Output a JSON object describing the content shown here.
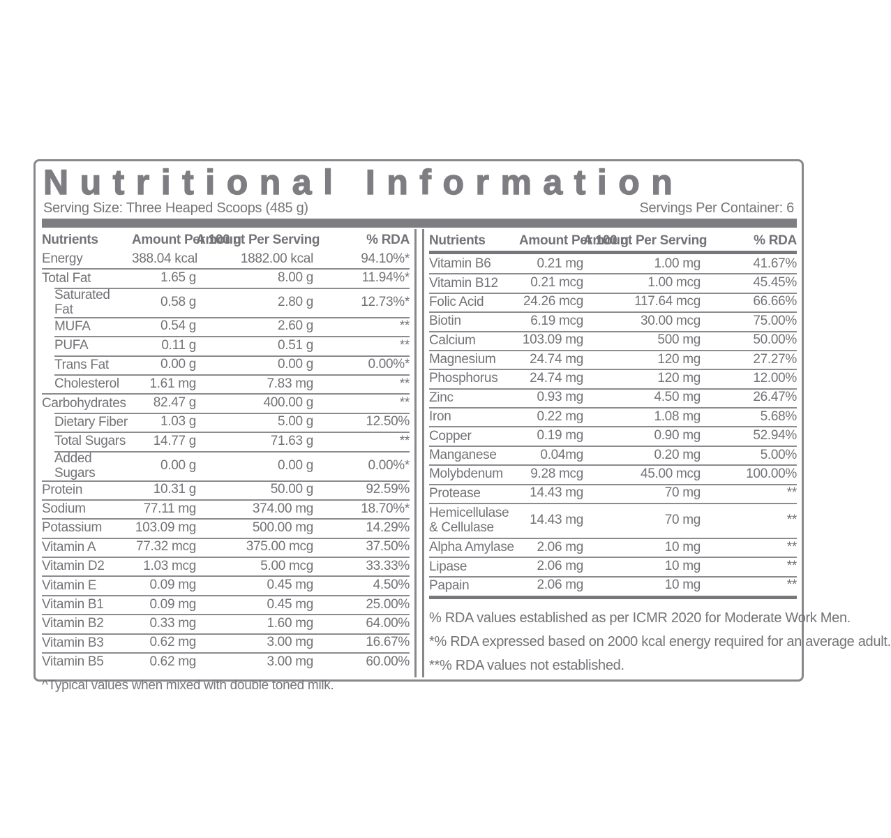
{
  "header": {
    "title": "Nutritional Information",
    "serving_size": "Serving Size: Three Heaped Scoops (485 g)",
    "servings_per_container": "Servings Per Container: 6"
  },
  "columns": {
    "nutrient": "Nutrients",
    "per_100g": "Amount Per 100 g",
    "per_serving": "Amount Per Serving",
    "rda": "% RDA"
  },
  "left_table": {
    "rows": [
      {
        "label": "Energy",
        "per_100g": "388.04 kcal",
        "per_serving": "1882.00 kcal",
        "rda": "94.10%*",
        "indent": false
      },
      {
        "label": "Total Fat",
        "per_100g": "1.65 g",
        "per_serving": "8.00 g",
        "rda": "11.94%*",
        "indent": false
      },
      {
        "label": "Saturated Fat",
        "per_100g": "0.58 g",
        "per_serving": "2.80 g",
        "rda": "12.73%*",
        "indent": true
      },
      {
        "label": "MUFA",
        "per_100g": "0.54 g",
        "per_serving": "2.60 g",
        "rda": "**",
        "indent": true
      },
      {
        "label": "PUFA",
        "per_100g": "0.11 g",
        "per_serving": "0.51 g",
        "rda": "**",
        "indent": true
      },
      {
        "label": "Trans Fat",
        "per_100g": "0.00 g",
        "per_serving": "0.00 g",
        "rda": "0.00%*",
        "indent": true
      },
      {
        "label": "Cholesterol",
        "per_100g": "1.61 mg",
        "per_serving": "7.83 mg",
        "rda": "**",
        "indent": true
      },
      {
        "label": "Carbohydrates",
        "per_100g": "82.47 g",
        "per_serving": "400.00 g",
        "rda": "**",
        "indent": false
      },
      {
        "label": "Dietary Fiber",
        "per_100g": "1.03 g",
        "per_serving": "5.00 g",
        "rda": "12.50%",
        "indent": true
      },
      {
        "label": "Total Sugars",
        "per_100g": "14.77 g",
        "per_serving": "71.63 g",
        "rda": "**",
        "indent": true
      },
      {
        "label": "Added Sugars",
        "per_100g": "0.00 g",
        "per_serving": "0.00 g",
        "rda": "0.00%*",
        "indent": true
      },
      {
        "label": "Protein",
        "per_100g": "10.31 g",
        "per_serving": "50.00 g",
        "rda": "92.59%",
        "indent": false
      },
      {
        "label": "Sodium",
        "per_100g": "77.11 mg",
        "per_serving": "374.00 mg",
        "rda": "18.70%*",
        "indent": false
      },
      {
        "label": "Potassium",
        "per_100g": "103.09 mg",
        "per_serving": "500.00 mg",
        "rda": "14.29%",
        "indent": false
      },
      {
        "label": "Vitamin A",
        "per_100g": "77.32 mcg",
        "per_serving": "375.00 mcg",
        "rda": "37.50%",
        "indent": false
      },
      {
        "label": "Vitamin D2",
        "per_100g": "1.03 mcg",
        "per_serving": "5.00 mcg",
        "rda": "33.33%",
        "indent": false
      },
      {
        "label": "Vitamin E",
        "per_100g": "0.09 mg",
        "per_serving": "0.45 mg",
        "rda": "4.50%",
        "indent": false
      },
      {
        "label": "Vitamin B1",
        "per_100g": "0.09 mg",
        "per_serving": "0.45 mg",
        "rda": "25.00%",
        "indent": false
      },
      {
        "label": "Vitamin B2",
        "per_100g": "0.33 mg",
        "per_serving": "1.60 mg",
        "rda": "64.00%",
        "indent": false
      },
      {
        "label": "Vitamin B3",
        "per_100g": "0.62 mg",
        "per_serving": "3.00 mg",
        "rda": "16.67%",
        "indent": false
      },
      {
        "label": "Vitamin B5",
        "per_100g": "0.62 mg",
        "per_serving": "3.00 mg",
        "rda": "60.00%",
        "indent": false
      }
    ],
    "footnote": "^Typical values when mixed with double toned milk."
  },
  "right_table": {
    "rows": [
      {
        "label": "Vitamin B6",
        "per_100g": "0.21 mg",
        "per_serving": "1.00 mg",
        "rda": "41.67%",
        "indent": false
      },
      {
        "label": "Vitamin B12",
        "per_100g": "0.21 mcg",
        "per_serving": "1.00 mcg",
        "rda": "45.45%",
        "indent": false
      },
      {
        "label": "Folic Acid",
        "per_100g": "24.26 mcg",
        "per_serving": "117.64 mcg",
        "rda": "66.66%",
        "indent": false
      },
      {
        "label": "Biotin",
        "per_100g": "6.19 mcg",
        "per_serving": "30.00 mcg",
        "rda": "75.00%",
        "indent": false
      },
      {
        "label": "Calcium",
        "per_100g": "103.09 mg",
        "per_serving": "500 mg",
        "rda": "50.00%",
        "indent": false
      },
      {
        "label": "Magnesium",
        "per_100g": "24.74 mg",
        "per_serving": "120 mg",
        "rda": "27.27%",
        "indent": false
      },
      {
        "label": "Phosphorus",
        "per_100g": "24.74 mg",
        "per_serving": "120 mg",
        "rda": "12.00%",
        "indent": false
      },
      {
        "label": "Zinc",
        "per_100g": "0.93 mg",
        "per_serving": "4.50 mg",
        "rda": "26.47%",
        "indent": false
      },
      {
        "label": "Iron",
        "per_100g": "0.22 mg",
        "per_serving": "1.08 mg",
        "rda": "5.68%",
        "indent": false
      },
      {
        "label": "Copper",
        "per_100g": "0.19 mg",
        "per_serving": "0.90 mg",
        "rda": "52.94%",
        "indent": false
      },
      {
        "label": "Manganese",
        "per_100g": "0.04mg",
        "per_serving": "0.20 mg",
        "rda": "5.00%",
        "indent": false
      },
      {
        "label": "Molybdenum",
        "per_100g": "9.28 mcg",
        "per_serving": "45.00 mcg",
        "rda": "100.00%",
        "indent": false
      },
      {
        "label": "Protease",
        "per_100g": "14.43 mg",
        "per_serving": "70 mg",
        "rda": "**",
        "indent": false
      },
      {
        "label": "Hemicellulase & Cellulase",
        "per_100g": "14.43 mg",
        "per_serving": "70 mg",
        "rda": "**",
        "indent": false,
        "tall": true
      },
      {
        "label": "Alpha Amylase",
        "per_100g": "2.06 mg",
        "per_serving": "10 mg",
        "rda": "**",
        "indent": false
      },
      {
        "label": "Lipase",
        "per_100g": "2.06 mg",
        "per_serving": "10 mg",
        "rda": "**",
        "indent": false
      },
      {
        "label": "Papain",
        "per_100g": "2.06 mg",
        "per_serving": "10 mg",
        "rda": "**",
        "indent": false
      }
    ],
    "footnotes": [
      "% RDA values established as per ICMR 2020 for Moderate Work Men.",
      "*% RDA expressed based on 2000 kcal energy required for an average adult.",
      "**% RDA values not established."
    ]
  },
  "colors": {
    "text": "#737377",
    "thin_line": "#8b8b8f",
    "thick_line": "#77777b",
    "accent_bar": "#7e7e82",
    "title": "#7e7e82"
  }
}
